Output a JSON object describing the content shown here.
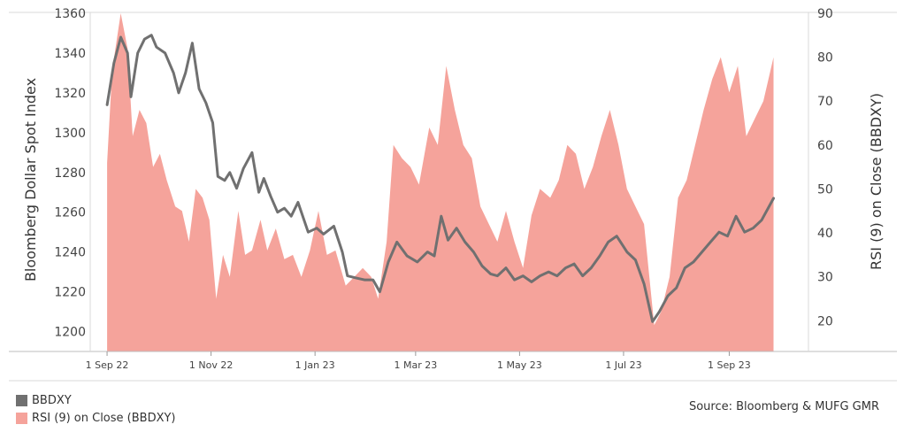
{
  "chart_data": {
    "type": "line",
    "left_axis": {
      "label": "Bloomberg Dollar Spot Index",
      "range": [
        1190,
        1360
      ],
      "ticks": [
        1200,
        1220,
        1240,
        1260,
        1280,
        1300,
        1320,
        1340,
        1360
      ]
    },
    "right_axis": {
      "label": "RSI (9)  on Close (BBDXY)",
      "range": [
        13,
        90
      ],
      "ticks": [
        20,
        30,
        40,
        50,
        60,
        70,
        80,
        90
      ]
    },
    "x_axis": {
      "range": [
        "2022-08-19",
        "2023-10-18"
      ],
      "ticks": [
        "1 Sep 22",
        "1 Nov 22",
        "1 Jan 23",
        "1 Mar 23",
        "1 May 23",
        "1 Jul 23",
        "1 Sep 23"
      ]
    },
    "series": [
      {
        "name": "BBDXY",
        "axis": "left",
        "type": "line",
        "color": "#707070",
        "points": [
          [
            "2022-09-01",
            1314
          ],
          [
            "2022-09-05",
            1335
          ],
          [
            "2022-09-09",
            1348
          ],
          [
            "2022-09-13",
            1340
          ],
          [
            "2022-09-15",
            1318
          ],
          [
            "2022-09-19",
            1340
          ],
          [
            "2022-09-23",
            1347
          ],
          [
            "2022-09-27",
            1349
          ],
          [
            "2022-09-30",
            1343
          ],
          [
            "2022-10-05",
            1340
          ],
          [
            "2022-10-10",
            1330
          ],
          [
            "2022-10-13",
            1320
          ],
          [
            "2022-10-17",
            1330
          ],
          [
            "2022-10-21",
            1345
          ],
          [
            "2022-10-25",
            1322
          ],
          [
            "2022-10-29",
            1315
          ],
          [
            "2022-11-02",
            1305
          ],
          [
            "2022-11-05",
            1278
          ],
          [
            "2022-11-09",
            1276
          ],
          [
            "2022-11-12",
            1280
          ],
          [
            "2022-11-16",
            1272
          ],
          [
            "2022-11-20",
            1282
          ],
          [
            "2022-11-25",
            1290
          ],
          [
            "2022-11-29",
            1270
          ],
          [
            "2022-12-02",
            1277
          ],
          [
            "2022-12-06",
            1268
          ],
          [
            "2022-12-10",
            1260
          ],
          [
            "2022-12-14",
            1262
          ],
          [
            "2022-12-18",
            1258
          ],
          [
            "2022-12-22",
            1265
          ],
          [
            "2022-12-28",
            1250
          ],
          [
            "2023-01-02",
            1252
          ],
          [
            "2023-01-06",
            1249
          ],
          [
            "2023-01-12",
            1253
          ],
          [
            "2023-01-17",
            1240
          ],
          [
            "2023-01-20",
            1228
          ],
          [
            "2023-01-25",
            1227
          ],
          [
            "2023-01-30",
            1226
          ],
          [
            "2023-02-04",
            1226
          ],
          [
            "2023-02-08",
            1220
          ],
          [
            "2023-02-13",
            1235
          ],
          [
            "2023-02-18",
            1245
          ],
          [
            "2023-02-24",
            1238
          ],
          [
            "2023-03-02",
            1235
          ],
          [
            "2023-03-08",
            1240
          ],
          [
            "2023-03-12",
            1238
          ],
          [
            "2023-03-16",
            1258
          ],
          [
            "2023-03-20",
            1246
          ],
          [
            "2023-03-25",
            1252
          ],
          [
            "2023-03-30",
            1245
          ],
          [
            "2023-04-04",
            1240
          ],
          [
            "2023-04-09",
            1233
          ],
          [
            "2023-04-14",
            1229
          ],
          [
            "2023-04-18",
            1228
          ],
          [
            "2023-04-23",
            1232
          ],
          [
            "2023-04-28",
            1226
          ],
          [
            "2023-05-03",
            1228
          ],
          [
            "2023-05-08",
            1225
          ],
          [
            "2023-05-13",
            1228
          ],
          [
            "2023-05-18",
            1230
          ],
          [
            "2023-05-23",
            1228
          ],
          [
            "2023-05-28",
            1232
          ],
          [
            "2023-06-02",
            1234
          ],
          [
            "2023-06-07",
            1228
          ],
          [
            "2023-06-12",
            1232
          ],
          [
            "2023-06-17",
            1238
          ],
          [
            "2023-06-22",
            1245
          ],
          [
            "2023-06-27",
            1248
          ],
          [
            "2023-07-03",
            1240
          ],
          [
            "2023-07-08",
            1236
          ],
          [
            "2023-07-13",
            1224
          ],
          [
            "2023-07-18",
            1205
          ],
          [
            "2023-07-22",
            1210
          ],
          [
            "2023-07-27",
            1218
          ],
          [
            "2023-08-01",
            1222
          ],
          [
            "2023-08-06",
            1232
          ],
          [
            "2023-08-11",
            1235
          ],
          [
            "2023-08-16",
            1240
          ],
          [
            "2023-08-21",
            1245
          ],
          [
            "2023-08-26",
            1250
          ],
          [
            "2023-08-31",
            1248
          ],
          [
            "2023-09-05",
            1258
          ],
          [
            "2023-09-10",
            1250
          ],
          [
            "2023-09-15",
            1252
          ],
          [
            "2023-09-20",
            1256
          ],
          [
            "2023-09-27",
            1267
          ]
        ]
      },
      {
        "name": "RSI (9)  on Close (BBDXY)",
        "axis": "right",
        "type": "area",
        "color": "#f5a39b",
        "points": [
          [
            "2022-09-01",
            56
          ],
          [
            "2022-09-04",
            77
          ],
          [
            "2022-09-09",
            90
          ],
          [
            "2022-09-13",
            82
          ],
          [
            "2022-09-16",
            62
          ],
          [
            "2022-09-20",
            68
          ],
          [
            "2022-09-24",
            65
          ],
          [
            "2022-09-28",
            55
          ],
          [
            "2022-10-02",
            58
          ],
          [
            "2022-10-06",
            52
          ],
          [
            "2022-10-11",
            46
          ],
          [
            "2022-10-15",
            45
          ],
          [
            "2022-10-19",
            38
          ],
          [
            "2022-10-23",
            50
          ],
          [
            "2022-10-27",
            48
          ],
          [
            "2022-10-31",
            43
          ],
          [
            "2022-11-04",
            25
          ],
          [
            "2022-11-08",
            35
          ],
          [
            "2022-11-12",
            30
          ],
          [
            "2022-11-17",
            45
          ],
          [
            "2022-11-21",
            35
          ],
          [
            "2022-11-25",
            36
          ],
          [
            "2022-11-30",
            43
          ],
          [
            "2022-12-04",
            36
          ],
          [
            "2022-12-09",
            41
          ],
          [
            "2022-12-14",
            34
          ],
          [
            "2022-12-19",
            35
          ],
          [
            "2022-12-24",
            30
          ],
          [
            "2022-12-29",
            36
          ],
          [
            "2023-01-03",
            45
          ],
          [
            "2023-01-08",
            35
          ],
          [
            "2023-01-13",
            36
          ],
          [
            "2023-01-19",
            28
          ],
          [
            "2023-01-24",
            30
          ],
          [
            "2023-01-29",
            32
          ],
          [
            "2023-02-03",
            30
          ],
          [
            "2023-02-07",
            25
          ],
          [
            "2023-02-12",
            38
          ],
          [
            "2023-02-16",
            60
          ],
          [
            "2023-02-21",
            57
          ],
          [
            "2023-02-26",
            55
          ],
          [
            "2023-03-03",
            51
          ],
          [
            "2023-03-09",
            64
          ],
          [
            "2023-03-14",
            60
          ],
          [
            "2023-03-19",
            78
          ],
          [
            "2023-03-24",
            68
          ],
          [
            "2023-03-29",
            60
          ],
          [
            "2023-04-03",
            57
          ],
          [
            "2023-04-08",
            46
          ],
          [
            "2023-04-13",
            42
          ],
          [
            "2023-04-18",
            38
          ],
          [
            "2023-04-23",
            45
          ],
          [
            "2023-04-28",
            38
          ],
          [
            "2023-05-03",
            32
          ],
          [
            "2023-05-08",
            44
          ],
          [
            "2023-05-13",
            50
          ],
          [
            "2023-05-19",
            48
          ],
          [
            "2023-05-24",
            52
          ],
          [
            "2023-05-29",
            60
          ],
          [
            "2023-06-03",
            58
          ],
          [
            "2023-06-08",
            50
          ],
          [
            "2023-06-13",
            55
          ],
          [
            "2023-06-18",
            62
          ],
          [
            "2023-06-23",
            68
          ],
          [
            "2023-06-28",
            60
          ],
          [
            "2023-07-03",
            50
          ],
          [
            "2023-07-08",
            46
          ],
          [
            "2023-07-13",
            42
          ],
          [
            "2023-07-19",
            19
          ],
          [
            "2023-07-23",
            22
          ],
          [
            "2023-07-28",
            30
          ],
          [
            "2023-08-02",
            48
          ],
          [
            "2023-08-07",
            52
          ],
          [
            "2023-08-12",
            60
          ],
          [
            "2023-08-17",
            68
          ],
          [
            "2023-08-22",
            75
          ],
          [
            "2023-08-27",
            80
          ],
          [
            "2023-09-01",
            72
          ],
          [
            "2023-09-06",
            78
          ],
          [
            "2023-09-11",
            62
          ],
          [
            "2023-09-16",
            66
          ],
          [
            "2023-09-21",
            70
          ],
          [
            "2023-09-27",
            80
          ]
        ]
      }
    ],
    "legend": {
      "position": "bottom-left",
      "items": [
        "BBDXY",
        "RSI (9)  on Close (BBDXY)"
      ]
    },
    "grid": false
  },
  "source": "Source: Bloomberg & MUFG GMR"
}
